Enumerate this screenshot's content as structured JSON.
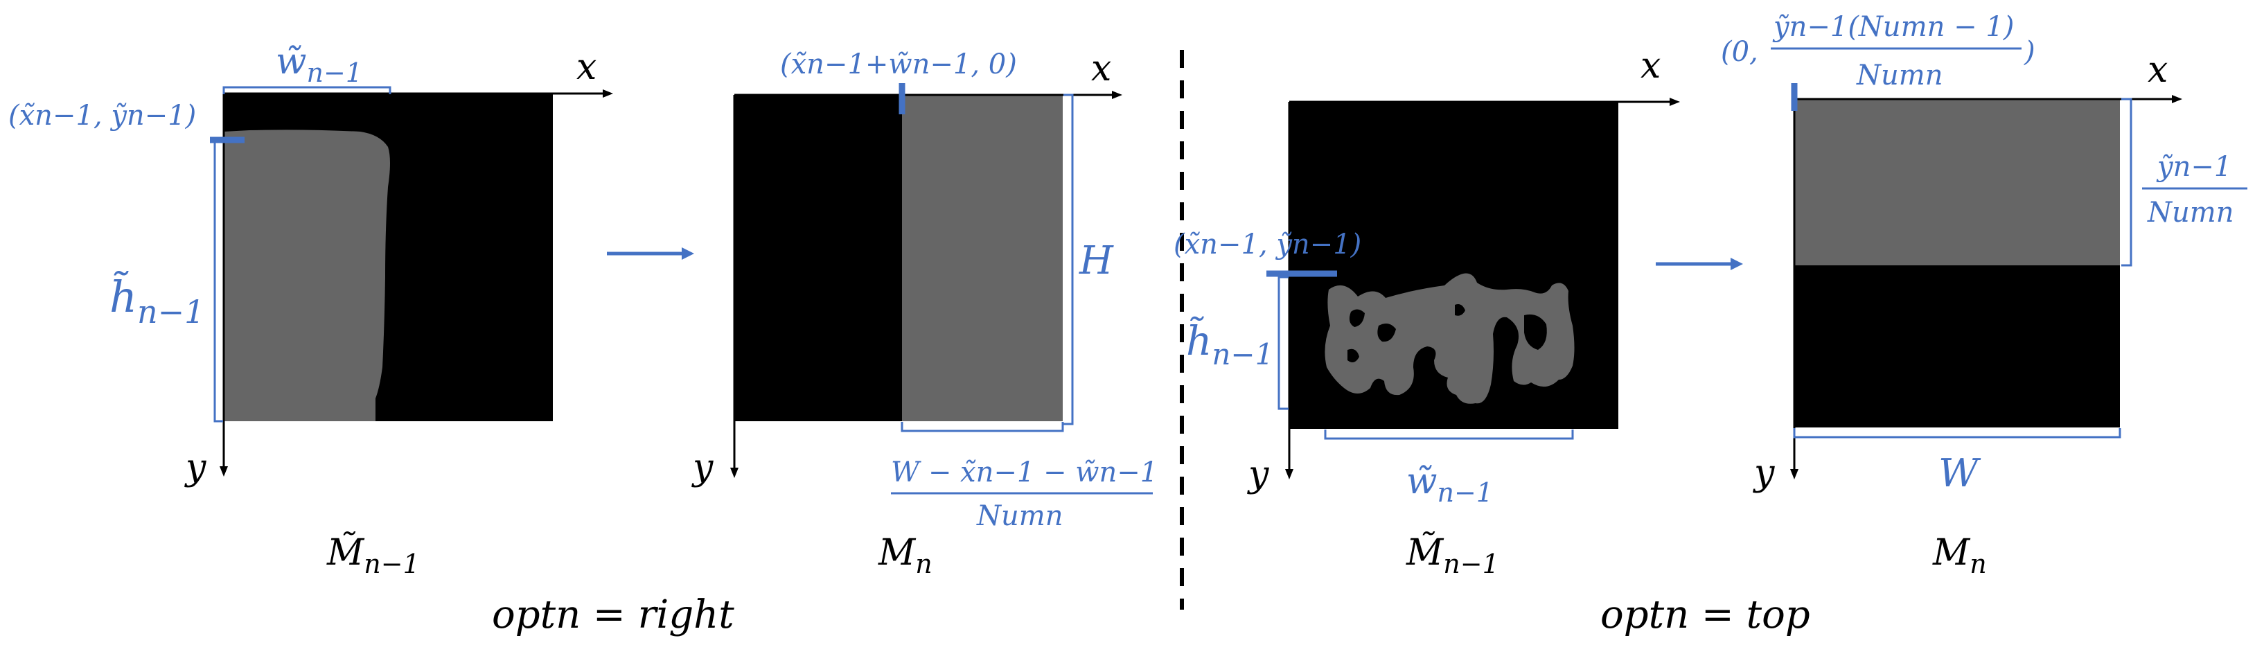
{
  "colors": {
    "accent": "#4472c4",
    "mask": "#666666",
    "background_region": "#000000",
    "axis": "#000000"
  },
  "panels": {
    "p1": {
      "caption": "M̃",
      "caption_sub": "n−1",
      "axis_x": "x",
      "axis_y": "y",
      "width_label": "w̃",
      "width_sub": "n−1",
      "height_label": "h̃",
      "height_sub": "n−1",
      "corner_label": "(x̃n−1, ỹn−1)"
    },
    "p2": {
      "caption": "M",
      "caption_sub": "n",
      "axis_x": "x",
      "axis_y": "y",
      "origin_label": "(x̃n−1+w̃n−1, 0)",
      "height_label": "H",
      "width_numerator": "W − x̃n−1 − w̃n−1",
      "width_denominator": "Numn"
    },
    "p3": {
      "caption": "M̃",
      "caption_sub": "n−1",
      "axis_x": "x",
      "axis_y": "y",
      "corner_label": "(x̃n−1, ỹn−1)",
      "height_label": "h̃",
      "height_sub": "n−1",
      "width_label": "w̃",
      "width_sub": "n−1"
    },
    "p4": {
      "caption": "M",
      "caption_sub": "n",
      "axis_x": "x",
      "axis_y": "y",
      "origin_prefix": "(0,",
      "origin_numerator": "ỹn−1(Numn − 1)",
      "origin_denominator": "Numn",
      "origin_suffix": ")",
      "height_numerator": "ỹn−1",
      "height_denominator": "Numn",
      "width_label": "W"
    }
  },
  "section_labels": {
    "left": "optn = right",
    "right": "optn = top"
  }
}
